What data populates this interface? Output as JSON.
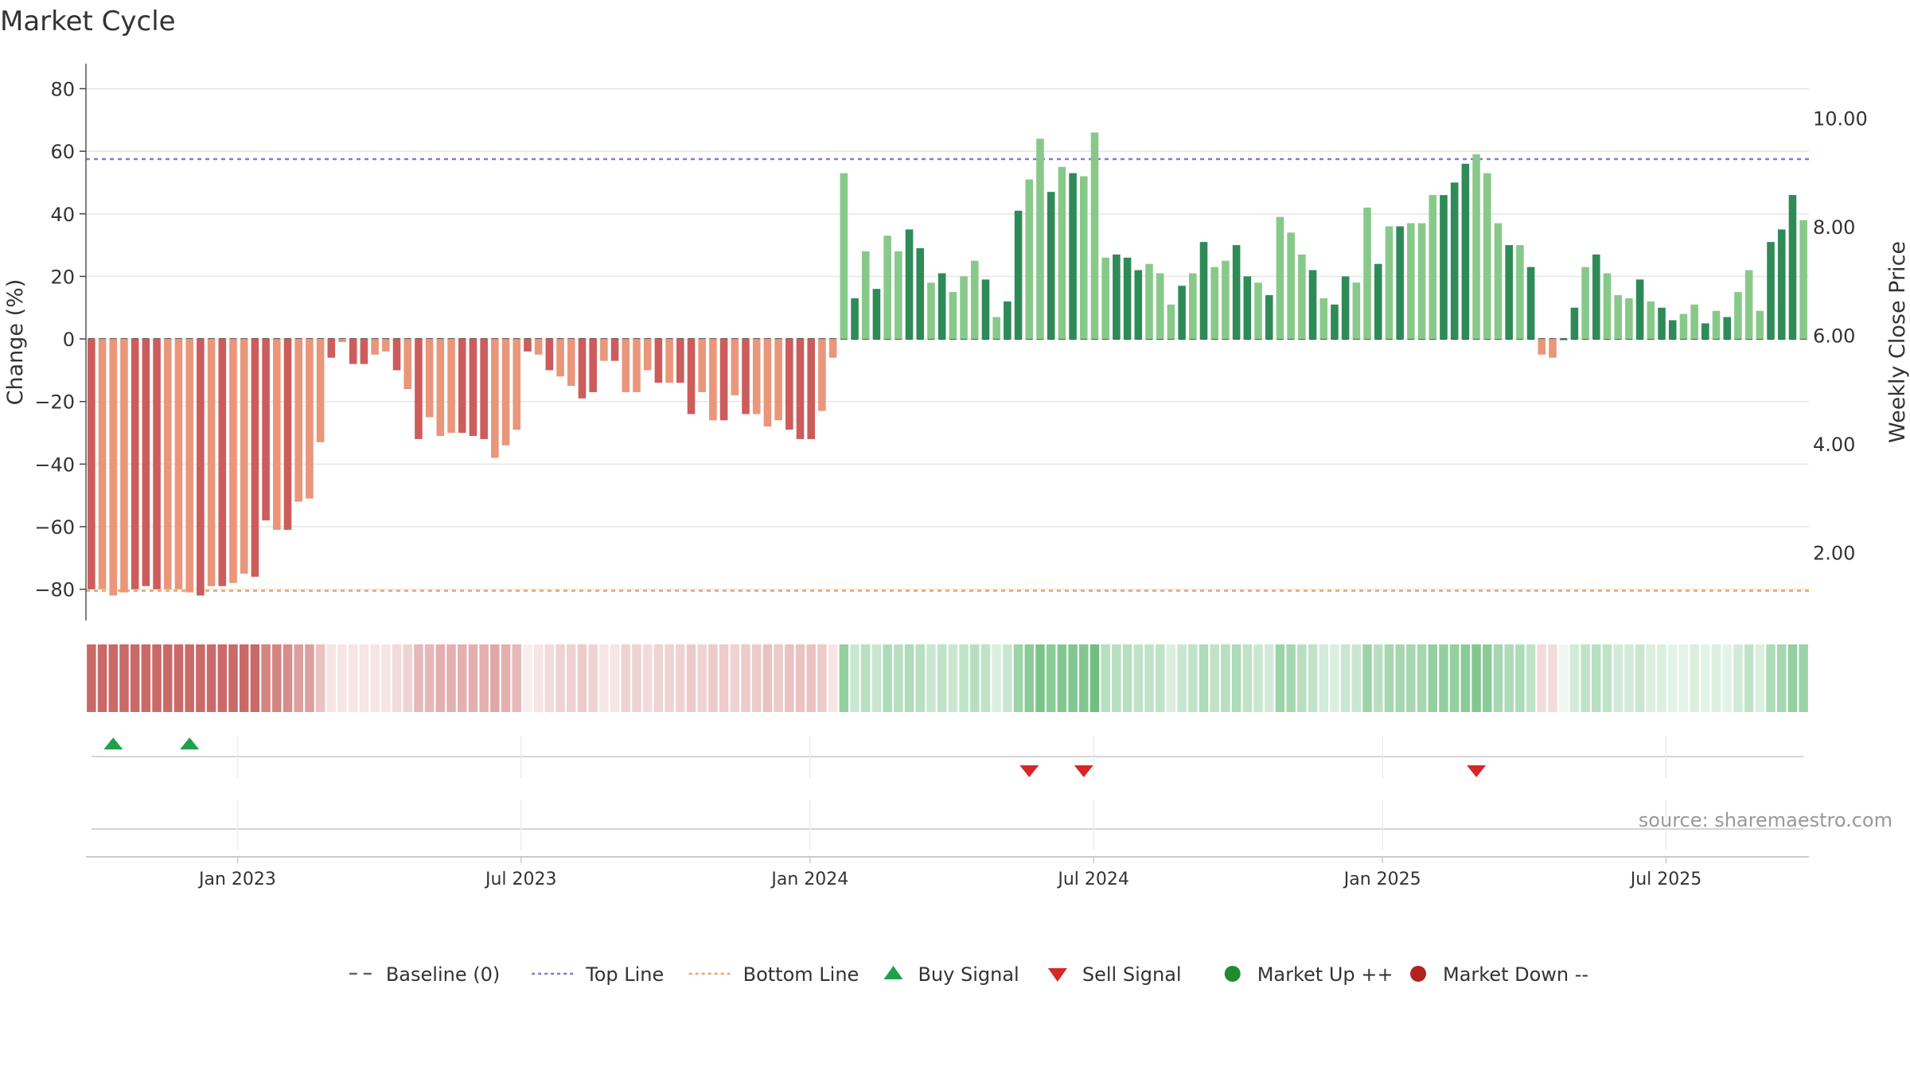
{
  "chart_data": {
    "type": "bar",
    "title": "Market Cycle",
    "ylabel": "Change (%)",
    "y2label": "Weekly Close Price",
    "ylim": [
      -90,
      88
    ],
    "y2lim": [
      0.75,
      11.0
    ],
    "y_ticks": [
      80,
      60,
      40,
      20,
      0,
      -20,
      -40,
      -60,
      -80
    ],
    "y_tick_labels": [
      "80",
      "60",
      "40",
      "20",
      "0",
      "−20",
      "−40",
      "−60",
      "−80"
    ],
    "y2_ticks": [
      10,
      8,
      6,
      4,
      2
    ],
    "y2_tick_labels": [
      "10.00",
      "8.00",
      "6.00",
      "4.00",
      "2.00"
    ],
    "x_ticks": [
      "Jan 2023",
      "Jul 2023",
      "Jan 2024",
      "Jul 2024",
      "Jan 2025",
      "Jul 2025"
    ],
    "x_tick_positions": [
      13.9,
      39.9,
      66.4,
      92.4,
      118.9,
      144.9
    ],
    "top_line": 57.5,
    "bottom_line": -80.5,
    "baseline": 0,
    "values": [
      -80,
      -80,
      -82,
      -81,
      -80,
      -79,
      -80,
      -80,
      -80,
      -81,
      -82,
      -79,
      -79,
      -78,
      -75,
      -76,
      -58,
      -61,
      -61,
      -52,
      -51,
      -33,
      -6,
      -1,
      -8,
      -8,
      -5,
      -4,
      -10,
      -16,
      -32,
      -25,
      -31,
      -30,
      -30,
      -31,
      -32,
      -38,
      -34,
      -29,
      -4,
      -5,
      -10,
      -12,
      -15,
      -19,
      -17,
      -7,
      -7,
      -17,
      -17,
      -10,
      -14,
      -14,
      -14,
      -24,
      -17,
      -26,
      -26,
      -18,
      -24,
      -24,
      -28,
      -26,
      -29,
      -32,
      -32,
      -23,
      -6,
      53,
      13,
      28,
      16,
      33,
      28,
      35,
      29,
      18,
      21,
      15,
      20,
      25,
      19,
      7,
      12,
      41,
      51,
      64,
      47,
      55,
      53,
      52,
      66,
      26,
      27,
      26,
      22,
      24,
      21,
      11,
      17,
      21,
      31,
      23,
      25,
      30,
      20,
      18,
      14,
      39,
      34,
      27,
      22,
      13,
      11,
      20,
      18,
      42,
      24,
      36,
      36,
      37,
      37,
      46,
      46,
      50,
      56,
      59,
      53,
      37,
      30,
      30,
      23,
      -5,
      -6,
      0,
      10,
      23,
      27,
      21,
      14,
      13,
      19,
      12,
      10,
      6,
      8,
      11,
      5,
      9,
      7,
      15,
      22,
      9,
      31,
      35,
      46,
      38
    ],
    "series": [
      {
        "values": []
      }
    ],
    "strip_intensity": [
      0.85,
      0.85,
      0.85,
      0.85,
      0.85,
      0.85,
      0.85,
      0.85,
      0.85,
      0.85,
      0.85,
      0.85,
      0.85,
      0.85,
      0.85,
      0.85,
      0.7,
      0.7,
      0.65,
      0.55,
      0.55,
      0.35,
      0.15,
      0.15,
      0.15,
      0.15,
      0.15,
      0.15,
      0.2,
      0.25,
      0.4,
      0.4,
      0.45,
      0.45,
      0.45,
      0.45,
      0.45,
      0.5,
      0.45,
      0.4,
      0.1,
      0.15,
      0.2,
      0.25,
      0.25,
      0.3,
      0.25,
      0.15,
      0.15,
      0.25,
      0.25,
      0.2,
      0.25,
      0.25,
      0.25,
      0.3,
      0.25,
      0.3,
      0.3,
      0.25,
      0.3,
      0.3,
      0.35,
      0.3,
      0.35,
      0.35,
      0.35,
      0.3,
      0.15,
      0.6,
      0.3,
      0.4,
      0.3,
      0.45,
      0.4,
      0.45,
      0.4,
      0.3,
      0.35,
      0.3,
      0.35,
      0.4,
      0.35,
      0.2,
      0.3,
      0.55,
      0.65,
      0.75,
      0.65,
      0.7,
      0.7,
      0.7,
      0.8,
      0.4,
      0.4,
      0.4,
      0.35,
      0.35,
      0.35,
      0.2,
      0.3,
      0.35,
      0.45,
      0.35,
      0.4,
      0.45,
      0.35,
      0.3,
      0.25,
      0.55,
      0.5,
      0.4,
      0.35,
      0.25,
      0.2,
      0.3,
      0.3,
      0.55,
      0.4,
      0.5,
      0.5,
      0.5,
      0.5,
      0.6,
      0.6,
      0.6,
      0.65,
      0.7,
      0.65,
      0.5,
      0.45,
      0.45,
      0.35,
      0.2,
      0.2,
      0.1,
      0.25,
      0.35,
      0.4,
      0.35,
      0.25,
      0.25,
      0.3,
      0.2,
      0.2,
      0.15,
      0.15,
      0.2,
      0.15,
      0.2,
      0.15,
      0.25,
      0.35,
      0.2,
      0.45,
      0.5,
      0.6,
      0.55
    ],
    "buy_signals": [
      2,
      9
    ],
    "sell_signals": [
      86,
      91,
      127
    ],
    "colors": {
      "up_dark": "#2e8b57",
      "up_light": "#88c98a",
      "down_dark": "#cd5c5c",
      "down_light": "#e9967a",
      "top_line": "#9370db",
      "bottom_line": "#f4a460",
      "buy": "#1fa14a",
      "sell": "#d62828",
      "market_up": "#1e8c2e",
      "market_down": "#b22222",
      "strip_red": "#c0504d",
      "strip_green": "#4caf61"
    },
    "legend": [
      {
        "label": "Baseline (0)",
        "icon": "dash-line",
        "color": "#666666"
      },
      {
        "label": "Top Line",
        "icon": "dotted-line",
        "color": "#9370db"
      },
      {
        "label": "Bottom Line",
        "icon": "dotted-line",
        "color": "#f4a460"
      },
      {
        "label": "Buy Signal",
        "icon": "triangle-up",
        "color": "#1fa14a"
      },
      {
        "label": "Sell Signal",
        "icon": "triangle-down",
        "color": "#d62828"
      },
      {
        "label": "Market Up ++",
        "icon": "circle",
        "color": "#1e8c2e"
      },
      {
        "label": "Market Down --",
        "icon": "circle",
        "color": "#b22222"
      }
    ],
    "legend_placement": "bottom-center",
    "source_text": "source: sharemaestro.com",
    "grid": true
  }
}
